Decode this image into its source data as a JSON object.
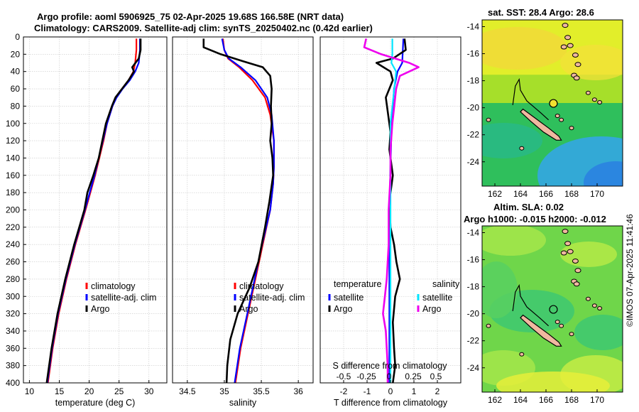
{
  "header": {
    "title_line1": "Argo profile: aoml 5906925_75 02-Apr-2025 19.68S 166.58E (NRT data)",
    "title_line2": "Climatology: CARS2009. Satellite-adj clim: synTS_20250402.nc (0.42d earlier)"
  },
  "map_sst": {
    "title": "sat. SST: 28.4 Argo: 28.6",
    "sat_sst": 28.4,
    "argo_sst": 28.6
  },
  "map_sla": {
    "title1": "Altim. SLA: 0.02",
    "title2": "Argo h1000: -0.015 h2000: -0.012",
    "sla": 0.02,
    "h1000": -0.015,
    "h2000": -0.012
  },
  "copyright": "©IMOS 07-Apr-2025 11:41:46",
  "colors": {
    "climatology": "#ff0000",
    "satellite": "#0000ff",
    "argo": "#000000",
    "s_satellite": "#00e5ff",
    "s_argo": "#ee00ee"
  },
  "chart_data": [
    {
      "type": "line",
      "id": "temperature",
      "xlabel": "temperature (deg C)",
      "ylabel": "",
      "xlim": [
        9,
        33
      ],
      "ylim": [
        0,
        400
      ],
      "xticks": [
        10,
        15,
        20,
        25,
        30
      ],
      "yticks": [
        0,
        20,
        40,
        60,
        80,
        100,
        120,
        140,
        160,
        180,
        200,
        220,
        240,
        260,
        280,
        300,
        320,
        340,
        360,
        380,
        400
      ],
      "legend": [
        "climatology",
        "satellite-adj. clim",
        "Argo"
      ],
      "legend_position": "lower-right",
      "series": [
        {
          "name": "climatology",
          "depth": [
            2,
            15,
            30,
            40,
            50,
            60,
            70,
            80,
            100,
            120,
            140,
            160,
            180,
            200,
            240,
            280,
            320,
            360,
            400
          ],
          "values": [
            27.9,
            27.9,
            27.7,
            27.4,
            26.6,
            25.5,
            24.5,
            23.9,
            23.0,
            22.4,
            21.7,
            21.0,
            20.2,
            19.4,
            17.7,
            16.2,
            14.9,
            13.9,
            13.1
          ]
        },
        {
          "name": "satellite-adj. clim",
          "depth": [
            2,
            15,
            30,
            40,
            50,
            60,
            70,
            80,
            100,
            120,
            140,
            160,
            180,
            200,
            240,
            280,
            320,
            360,
            400
          ],
          "values": [
            28.5,
            28.5,
            28.3,
            27.7,
            26.8,
            25.6,
            24.6,
            23.9,
            23.0,
            22.3,
            21.6,
            20.9,
            20.1,
            19.3,
            17.6,
            16.1,
            14.8,
            13.8,
            13.0
          ]
        },
        {
          "name": "Argo",
          "depth": [
            2,
            15,
            25,
            35,
            40,
            50,
            60,
            70,
            80,
            100,
            120,
            140,
            160,
            180,
            200,
            240,
            280,
            320,
            360,
            400
          ],
          "values": [
            28.6,
            28.6,
            28.3,
            27.2,
            27.5,
            26.6,
            25.5,
            24.4,
            23.8,
            22.8,
            22.2,
            21.6,
            20.7,
            19.7,
            19.2,
            17.5,
            16.0,
            14.7,
            13.7,
            12.9
          ]
        }
      ]
    },
    {
      "type": "line",
      "id": "salinity",
      "xlabel": "salinity",
      "xlim": [
        34.3,
        36.2
      ],
      "ylim": [
        0,
        400
      ],
      "xticks": [
        34.5,
        35,
        35.5,
        36
      ],
      "legend": [
        "climatology",
        "satellite-adj. clim",
        "Argo"
      ],
      "legend_position": "lower-right",
      "series": [
        {
          "name": "climatology",
          "depth": [
            2,
            15,
            25,
            35,
            50,
            70,
            90,
            120,
            150,
            170,
            200,
            240,
            280,
            320,
            360,
            400
          ],
          "values": [
            34.98,
            35.0,
            35.05,
            35.2,
            35.38,
            35.55,
            35.62,
            35.67,
            35.67,
            35.66,
            35.62,
            35.52,
            35.42,
            35.32,
            35.22,
            35.15
          ]
        },
        {
          "name": "satellite-adj. clim",
          "depth": [
            2,
            15,
            25,
            35,
            50,
            70,
            90,
            120,
            150,
            170,
            200,
            240,
            280,
            320,
            360,
            400
          ],
          "values": [
            34.97,
            35.0,
            35.06,
            35.22,
            35.42,
            35.58,
            35.64,
            35.67,
            35.67,
            35.66,
            35.62,
            35.51,
            35.41,
            35.31,
            35.21,
            35.14
          ]
        },
        {
          "name": "Argo",
          "depth": [
            2,
            12,
            20,
            28,
            35,
            45,
            60,
            80,
            100,
            120,
            140,
            160,
            190,
            220,
            260,
            290,
            320,
            350,
            380,
            400
          ],
          "values": [
            34.72,
            34.72,
            34.95,
            35.25,
            35.52,
            35.62,
            35.64,
            35.63,
            35.64,
            35.62,
            35.65,
            35.66,
            35.61,
            35.55,
            35.46,
            35.34,
            35.18,
            35.08,
            35.04,
            35.03
          ]
        }
      ]
    },
    {
      "type": "line",
      "id": "difference",
      "xlabel": "T difference from climatology",
      "xlabel_top": "S difference from climatology",
      "xlim": [
        -3,
        3
      ],
      "ylim": [
        0,
        400
      ],
      "xticks": [
        -2,
        -1,
        0,
        1,
        2
      ],
      "s_tick_labels": [
        "-0.5",
        "-0.25",
        "0",
        "0.25",
        "0.5"
      ],
      "legend_temperature_header": "temperature",
      "legend_temperature": [
        "satellite",
        "Argo"
      ],
      "legend_salinity_header": "salinity",
      "legend_salinity": [
        "satellite",
        "Argo"
      ],
      "series": [
        {
          "name": "T satellite",
          "depth": [
            2,
            30,
            40,
            60,
            100,
            200,
            300,
            400
          ],
          "values": [
            0.55,
            0.5,
            0.3,
            0.15,
            0.05,
            -0.05,
            -0.05,
            -0.05
          ]
        },
        {
          "name": "T Argo",
          "depth": [
            2,
            15,
            25,
            30,
            35,
            40,
            50,
            70,
            90,
            110,
            130,
            160,
            190,
            220,
            240,
            260,
            280,
            300,
            330,
            360,
            380,
            400
          ],
          "values": [
            0.6,
            0.65,
            0.1,
            -0.6,
            -0.3,
            0.0,
            0.1,
            -0.2,
            -0.1,
            0.0,
            -0.05,
            0.1,
            -0.05,
            0.0,
            0.15,
            0.25,
            0.4,
            0.2,
            0.1,
            0.15,
            0.2,
            0.1
          ]
        },
        {
          "name": "S satellite",
          "depth": [
            2,
            20,
            30,
            40,
            60,
            100,
            200,
            300,
            400
          ],
          "values": [
            0.02,
            0.02,
            0.01,
            0.06,
            0.04,
            0.0,
            0.0,
            0.0,
            0.0
          ]
        },
        {
          "name": "S Argo",
          "depth": [
            2,
            12,
            20,
            30,
            35,
            45,
            60,
            80,
            100,
            130,
            160,
            200,
            240,
            280,
            300,
            320,
            340,
            360,
            380,
            400
          ],
          "values": [
            -0.26,
            -0.28,
            -0.1,
            0.2,
            0.3,
            0.1,
            0.06,
            0.04,
            0.02,
            0.0,
            0.0,
            -0.02,
            -0.02,
            -0.04,
            -0.06,
            -0.08,
            -0.05,
            -0.04,
            -0.03,
            -0.03
          ]
        }
      ]
    },
    {
      "type": "heatmap",
      "id": "sst_map",
      "title": "sat. SST: 28.4 Argo: 28.6",
      "xlim": [
        161,
        172
      ],
      "ylim": [
        -25.8,
        -13.5
      ],
      "xticks": [
        162,
        164,
        166,
        168,
        170
      ],
      "yticks": [
        -14,
        -16,
        -18,
        -20,
        -22,
        -24
      ],
      "argo_position": {
        "lon": 166.58,
        "lat": -19.68
      }
    },
    {
      "type": "heatmap",
      "id": "sla_map",
      "title": "Altim. SLA: 0.02",
      "xlim": [
        161,
        172
      ],
      "ylim": [
        -25.8,
        -13.5
      ],
      "xticks": [
        162,
        164,
        166,
        168,
        170
      ],
      "yticks": [
        -14,
        -16,
        -18,
        -20,
        -22,
        -24
      ],
      "argo_position": {
        "lon": 166.58,
        "lat": -19.68
      }
    }
  ]
}
